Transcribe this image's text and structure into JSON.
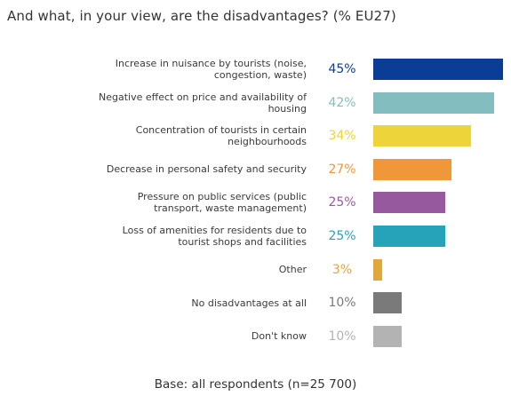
{
  "title": "And what, in your view, are the disadvantages? (% EU27)",
  "footer": "Base: all respondents (n=25 700)",
  "chart_data": {
    "type": "bar",
    "orientation": "horizontal",
    "title": "And what, in your view, are the disadvantages? (% EU27)",
    "categories": [
      "Increase in nuisance by tourists (noise, congestion, waste)",
      "Negative effect on price and availability of housing",
      "Concentration of tourists in certain neighbourhoods",
      "Decrease in personal safety and security",
      "Pressure on public services (public transport, waste management)",
      "Loss of amenities for residents due to tourist shops and facilities",
      "Other",
      "No disadvantages at all",
      "Don't know"
    ],
    "label_lines": [
      [
        "Increase in nuisance by tourists (noise,",
        "congestion, waste)"
      ],
      [
        "Negative effect on price and availability of",
        "housing"
      ],
      [
        "Concentration of tourists in certain",
        "neighbourhoods"
      ],
      [
        "Decrease in personal safety and security"
      ],
      [
        "Pressure on public services (public",
        "transport, waste management)"
      ],
      [
        "Loss of amenities for residents due to",
        "tourist shops and facilities"
      ],
      [
        "Other"
      ],
      [
        "No disadvantages at all"
      ],
      [
        "Don't know"
      ]
    ],
    "values": [
      45,
      42,
      34,
      27,
      25,
      25,
      3,
      10,
      10
    ],
    "value_labels": [
      "45%",
      "42%",
      "34%",
      "27%",
      "25%",
      "25%",
      "3%",
      "10%",
      "10%"
    ],
    "colors": [
      "#0c3d96",
      "#84bdbf",
      "#ecd43a",
      "#f0973a",
      "#96599e",
      "#26a3b8",
      "#e0a73a",
      "#7a7a7a",
      "#b3b3b3"
    ],
    "xlim": [
      0,
      45
    ],
    "grid": false,
    "legend": "none"
  }
}
